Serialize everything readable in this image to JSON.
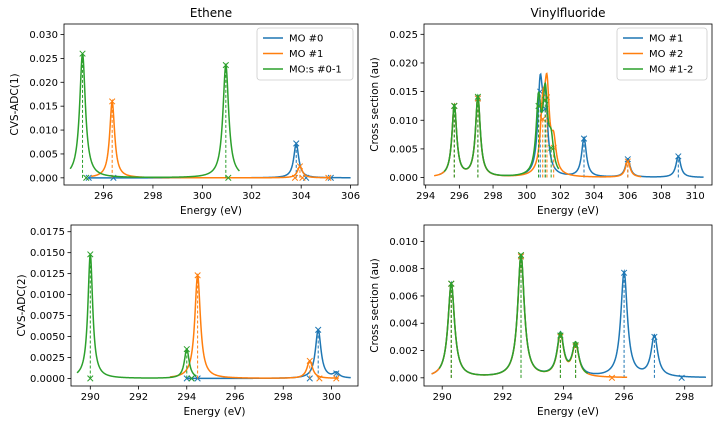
{
  "colors": {
    "blue": "#1f77b4",
    "orange": "#ff7f0e",
    "green": "#2ca02c"
  },
  "chart_data": [
    {
      "type": "line",
      "title": "Ethene",
      "xlabel": "Energy (eV)",
      "ylabel": "CVS-ADC(1)",
      "xlim": [
        294.4,
        306.3
      ],
      "ylim": [
        -0.0015,
        0.0322
      ],
      "xticks": [
        296,
        298,
        300,
        302,
        304,
        306
      ],
      "xtick_labels": [
        "296",
        "298",
        "300",
        "302",
        "304",
        "306"
      ],
      "yticks": [
        0,
        0.005,
        0.01,
        0.015,
        0.02,
        0.025,
        0.03
      ],
      "ytick_labels": [
        "0.000",
        "0.005",
        "0.010",
        "0.015",
        "0.020",
        "0.025",
        "0.030"
      ],
      "legend": {
        "position": "top-right"
      },
      "series": [
        {
          "name": "MO #0",
          "color": "#1f77b4",
          "x_range": [
            295.4,
            306.0
          ],
          "gamma": 0.12,
          "sticks": [
            [
              295.4,
              0.0
            ],
            [
              296.4,
              0.0
            ],
            [
              303.8,
              0.0072
            ],
            [
              304.2,
              0.0
            ],
            [
              305.2,
              0.0
            ]
          ]
        },
        {
          "name": "MO #1",
          "color": "#ff7f0e",
          "x_range": [
            295.5,
            305.2
          ],
          "gamma": 0.12,
          "sticks": [
            [
              296.35,
              0.016
            ],
            [
              303.75,
              0.0
            ],
            [
              303.95,
              0.0024
            ],
            [
              304.05,
              0.0
            ],
            [
              305.1,
              0.0
            ]
          ]
        },
        {
          "name": "MO:s #0-1",
          "color": "#2ca02c",
          "x_range": [
            294.65,
            301.5
          ],
          "gamma": 0.14,
          "sticks": [
            [
              295.15,
              0.026
            ],
            [
              295.3,
              0.0
            ],
            [
              300.95,
              0.0236
            ],
            [
              301.05,
              0.0
            ]
          ]
        }
      ]
    },
    {
      "type": "line",
      "title": "Vinylfluoride",
      "xlabel": "Energy (eV)",
      "ylabel": "Cross section (au)",
      "xlim": [
        293.9,
        311.0
      ],
      "ylim": [
        -0.0013,
        0.0268
      ],
      "xticks": [
        294,
        296,
        298,
        300,
        302,
        304,
        306,
        308,
        310
      ],
      "xtick_labels": [
        "294",
        "296",
        "298",
        "300",
        "302",
        "304",
        "306",
        "308",
        "310"
      ],
      "yticks": [
        0,
        0.005,
        0.01,
        0.015,
        0.02,
        0.025
      ],
      "ytick_labels": [
        "0.000",
        "0.005",
        "0.010",
        "0.015",
        "0.020",
        "0.025"
      ],
      "legend": {
        "position": "top-right"
      },
      "series": [
        {
          "name": "MO #1",
          "color": "#1f77b4",
          "x_range": [
            294.8,
            310.5
          ],
          "gamma": 0.17,
          "sticks": [
            [
              295.7,
              0.0125
            ],
            [
              297.1,
              0.0138
            ],
            [
              300.8,
              0.015
            ],
            [
              301.1,
              0.012
            ],
            [
              303.4,
              0.0068
            ],
            [
              306.0,
              0.0032
            ],
            [
              309.0,
              0.0037
            ]
          ]
        },
        {
          "name": "MO #2",
          "color": "#ff7f0e",
          "x_range": [
            294.5,
            306.8
          ],
          "gamma": 0.17,
          "sticks": [
            [
              295.7,
              0.0125
            ],
            [
              297.1,
              0.0138
            ],
            [
              300.95,
              0.0102
            ],
            [
              301.2,
              0.014
            ],
            [
              301.6,
              0.0052
            ],
            [
              306.0,
              0.0028
            ]
          ]
        },
        {
          "name": "MO #1-2",
          "color": "#2ca02c",
          "x_range": [
            295.1,
            301.9
          ],
          "gamma": 0.17,
          "sticks": [
            [
              295.7,
              0.0125
            ],
            [
              297.1,
              0.0141
            ],
            [
              300.7,
              0.0125
            ],
            [
              301.1,
              0.0135
            ],
            [
              301.45,
              0.0052
            ]
          ]
        }
      ]
    },
    {
      "type": "line",
      "title": "",
      "xlabel": "Energy (eV)",
      "ylabel": "CVS-ADC(2)",
      "xlim": [
        289.2,
        301.1
      ],
      "ylim": [
        -0.0009,
        0.0183
      ],
      "xticks": [
        290,
        292,
        294,
        296,
        298,
        300
      ],
      "xtick_labels": [
        "290",
        "292",
        "294",
        "296",
        "298",
        "300"
      ],
      "yticks": [
        0,
        0.0025,
        0.005,
        0.0075,
        0.01,
        0.0125,
        0.015,
        0.0175
      ],
      "ytick_labels": [
        "0.0000",
        "0.0025",
        "0.0050",
        "0.0075",
        "0.0100",
        "0.0125",
        "0.0150",
        "0.0175"
      ],
      "legend": null,
      "series": [
        {
          "name": "",
          "color": "#1f77b4",
          "x_range": [
            294.0,
            300.8
          ],
          "gamma": 0.14,
          "sticks": [
            [
              294.0,
              0.0
            ],
            [
              294.2,
              0.0
            ],
            [
              294.45,
              0.0
            ],
            [
              299.1,
              0.0
            ],
            [
              299.45,
              0.0058
            ],
            [
              300.2,
              0.0006
            ]
          ]
        },
        {
          "name": "",
          "color": "#ff7f0e",
          "x_range": [
            293.3,
            300.3
          ],
          "gamma": 0.14,
          "sticks": [
            [
              294.45,
              0.0123
            ],
            [
              299.1,
              0.0021
            ],
            [
              299.5,
              0.0
            ],
            [
              300.2,
              0.0
            ]
          ]
        },
        {
          "name": "",
          "color": "#2ca02c",
          "x_range": [
            289.45,
            294.4
          ],
          "gamma": 0.12,
          "sticks": [
            [
              290.0,
              0.0148
            ],
            [
              290.0,
              0.0
            ],
            [
              294.0,
              0.0035
            ],
            [
              294.2,
              0.0
            ]
          ]
        }
      ]
    },
    {
      "type": "line",
      "title": "",
      "xlabel": "Energy (eV)",
      "ylabel": "Cross section (au)",
      "xlim": [
        289.4,
        298.9
      ],
      "ylim": [
        -0.0006,
        0.0112
      ],
      "xticks": [
        290,
        292,
        294,
        296,
        298
      ],
      "xtick_labels": [
        "290",
        "292",
        "294",
        "296",
        "298"
      ],
      "yticks": [
        0,
        0.002,
        0.004,
        0.006,
        0.008,
        0.01
      ],
      "ytick_labels": [
        "0.000",
        "0.002",
        "0.004",
        "0.006",
        "0.008",
        "0.010"
      ],
      "legend": null,
      "series": [
        {
          "name": "",
          "color": "#1f77b4",
          "x_range": [
            289.65,
            298.7
          ],
          "gamma": 0.13,
          "sticks": [
            [
              290.3,
              0.0069
            ],
            [
              292.6,
              0.0089
            ],
            [
              293.9,
              0.0031
            ],
            [
              294.4,
              0.0023
            ],
            [
              296.0,
              0.0077
            ],
            [
              297.0,
              0.003
            ],
            [
              297.9,
              0.0
            ]
          ]
        },
        {
          "name": "",
          "color": "#ff7f0e",
          "x_range": [
            289.65,
            296.1
          ],
          "gamma": 0.13,
          "sticks": [
            [
              290.3,
              0.0069
            ],
            [
              292.6,
              0.0089
            ],
            [
              293.9,
              0.003
            ],
            [
              294.4,
              0.0023
            ],
            [
              295.6,
              0.0
            ]
          ]
        },
        {
          "name": "",
          "color": "#2ca02c",
          "x_range": [
            289.9,
            294.8
          ],
          "gamma": 0.13,
          "sticks": [
            [
              290.3,
              0.0069
            ],
            [
              292.6,
              0.009
            ],
            [
              293.9,
              0.0031
            ],
            [
              294.4,
              0.0024
            ]
          ]
        }
      ]
    }
  ]
}
